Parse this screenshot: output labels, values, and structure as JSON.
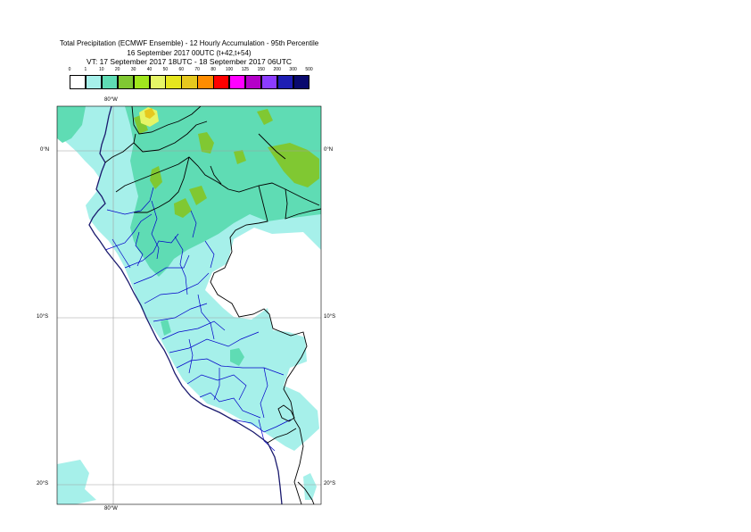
{
  "title": {
    "line1": "Total Precipitation (ECMWF Ensemble) - 12 Hourly Accumulation - 95th Percentile",
    "line2": "16 September 2017 00UTC (t+42,t+54)",
    "line3": "VT: 17 September 2017 18UTC - 18 September 2017 06UTC"
  },
  "legend": {
    "ticks": [
      "0",
      "1",
      "10",
      "20",
      "30",
      "40",
      "50",
      "60",
      "70",
      "80",
      "100",
      "125",
      "150",
      "200",
      "300",
      "500"
    ],
    "colors": [
      "#ffffff",
      "#a6f0ea",
      "#5fdcb4",
      "#80c832",
      "#a0e61e",
      "#e6f566",
      "#e6e61e",
      "#e6c81e",
      "#ff8c00",
      "#ff0000",
      "#ff00ff",
      "#b400c8",
      "#8c3cff",
      "#1e1eb4",
      "#0a0a6e"
    ]
  },
  "map": {
    "lon_labels": {
      "top": "80°W",
      "bottom": "80°W"
    },
    "lat_labels": {
      "eq": "0°N",
      "s10": "10°S",
      "s20": "20°S"
    },
    "colors": {
      "light": "#a6f0ea",
      "medium": "#5fdcb4",
      "green": "#80c832",
      "yellow": "#e6f566",
      "orange": "#e6c81e",
      "country_border": "#000000",
      "admin_border": "#0000c8",
      "grid": "#a0a0a0"
    }
  }
}
